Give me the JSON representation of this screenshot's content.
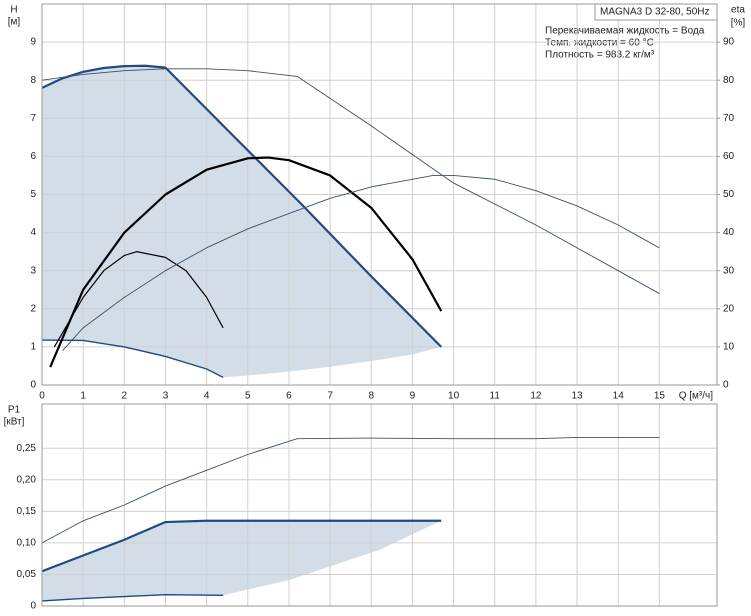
{
  "chart_data": [
    {
      "type": "line",
      "info": {
        "title": "MAGNA3 D 32-80, 50Hz",
        "lines": [
          "Перекачиваемая жидкость = Вода",
          "Темп. жидкости = 60 °C",
          "Плотность = 983.2 кг/м³"
        ]
      },
      "ylabel": [
        "H",
        "[м]"
      ],
      "y2label": [
        "eta",
        "[%]"
      ],
      "xlabel": "Q [м³/ч]",
      "xlim": [
        0,
        16.4
      ],
      "xticks": [
        0,
        1,
        2,
        3,
        4,
        5,
        6,
        7,
        8,
        9,
        10,
        11,
        12,
        13,
        14,
        15
      ],
      "ylim": [
        0,
        10
      ],
      "yticks": [
        0,
        1,
        2,
        3,
        4,
        5,
        6,
        7,
        8,
        9
      ],
      "y2lim": [
        0,
        100
      ],
      "y2ticks": [
        0,
        10,
        20,
        30,
        40,
        50,
        60,
        70,
        80,
        90
      ],
      "grid": true,
      "area_color": "#d3dde8",
      "series": [
        {
          "color": "#1f4a85",
          "width": 2.2,
          "x": [
            0,
            0.5,
            1,
            1.5,
            2,
            2.5,
            3,
            4.5,
            6.3,
            8,
            9.7
          ],
          "values": [
            7.8,
            8.05,
            8.22,
            8.32,
            8.37,
            8.38,
            8.33,
            6.7,
            4.75,
            2.85,
            1.0
          ]
        },
        {
          "color": "#1f4a85",
          "width": 1.4,
          "x": [
            0,
            1,
            2,
            3,
            4,
            4.4
          ],
          "values": [
            1.18,
            1.17,
            1.0,
            0.75,
            0.42,
            0.2
          ]
        },
        {
          "color": "#d3dde8",
          "width": 0,
          "x": [
            4.4,
            5,
            6,
            7,
            8,
            9,
            9.7
          ],
          "values": [
            0.2,
            0.25,
            0.35,
            0.48,
            0.63,
            0.8,
            1.0
          ]
        },
        {
          "color": "#3c4f6b",
          "width": 0.9,
          "x": [
            0,
            1,
            2,
            3,
            4,
            5,
            6.2,
            8,
            10,
            12,
            14,
            15
          ],
          "values": [
            8.0,
            8.15,
            8.25,
            8.3,
            8.3,
            8.25,
            8.1,
            6.8,
            5.3,
            4.2,
            3.0,
            2.4
          ]
        },
        {
          "color": "#000000",
          "width": 2.2,
          "axis": "y2",
          "x": [
            0.2,
            1,
            2,
            3,
            4,
            5,
            5.5,
            6,
            7,
            8,
            9,
            9.7
          ],
          "values": [
            4.7,
            25,
            40,
            50,
            56.5,
            59.5,
            59.7,
            59,
            55,
            46.5,
            33,
            19.4
          ]
        },
        {
          "color": "#000000",
          "width": 1.2,
          "axis": "y2",
          "x": [
            0.3,
            1,
            1.5,
            2,
            2.3,
            3,
            3.5,
            4,
            4.4
          ],
          "values": [
            10,
            23,
            30,
            34,
            35,
            33.5,
            30,
            23,
            15
          ]
        },
        {
          "color": "#3c4f6b",
          "width": 0.9,
          "axis": "y2",
          "x": [
            0.5,
            1,
            2,
            3,
            4,
            5,
            6,
            7,
            8,
            9,
            9.5,
            10,
            11,
            12,
            13,
            14,
            15
          ],
          "values": [
            9,
            15,
            23,
            30,
            36,
            41,
            45,
            49,
            52,
            54,
            55,
            55,
            54,
            51,
            47,
            42,
            36
          ]
        }
      ]
    },
    {
      "type": "line",
      "ylabel": [
        "P1",
        "[кВт]"
      ],
      "xlim": [
        0,
        16.4
      ],
      "xticks": [
        0,
        1,
        2,
        3,
        4,
        5,
        6,
        7,
        8,
        9,
        10,
        11,
        12,
        13,
        14,
        15
      ],
      "ylim": [
        0,
        0.32
      ],
      "yticks": [
        0,
        {
          "value": 0.05,
          "label": "0,05"
        },
        {
          "value": 0.1,
          "label": "0,10"
        },
        {
          "value": 0.15,
          "label": "0,15"
        },
        {
          "value": 0.2,
          "label": "0,20"
        },
        {
          "value": 0.25,
          "label": "0,25"
        }
      ],
      "grid": true,
      "area_color": "#d3dde8",
      "series": [
        {
          "color": "#1f4a85",
          "width": 2.2,
          "x": [
            0,
            1,
            2,
            3,
            4,
            9.7
          ],
          "values": [
            0.055,
            0.08,
            0.105,
            0.133,
            0.135,
            0.135
          ]
        },
        {
          "color": "#1f4a85",
          "width": 1.4,
          "x": [
            0,
            1,
            2,
            3,
            4.4
          ],
          "values": [
            0.008,
            0.012,
            0.015,
            0.018,
            0.017
          ]
        },
        {
          "color": "#d3dde8",
          "width": 0,
          "x": [
            4.4,
            6,
            8.2,
            9.7
          ],
          "values": [
            0.017,
            0.041,
            0.089,
            0.135
          ]
        },
        {
          "color": "#3c4f6b",
          "width": 0.9,
          "x": [
            0,
            1,
            2,
            3,
            4,
            5,
            6.2,
            8,
            10,
            12,
            13,
            15
          ],
          "values": [
            0.1,
            0.135,
            0.16,
            0.19,
            0.215,
            0.24,
            0.265,
            0.266,
            0.265,
            0.265,
            0.267,
            0.267
          ]
        }
      ]
    }
  ]
}
